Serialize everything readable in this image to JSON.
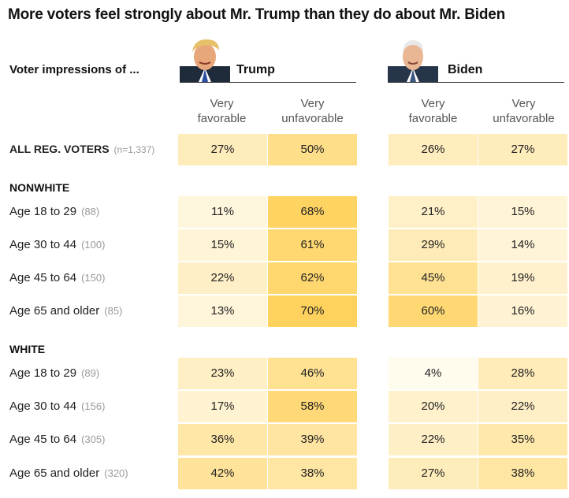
{
  "title": "More voters feel strongly about Mr. Trump than they do about Mr. Biden",
  "subhead": "Voter impressions of ...",
  "candidates": [
    {
      "name": "Trump",
      "icon": "trump-portrait-icon"
    },
    {
      "name": "Biden",
      "icon": "biden-portrait-icon"
    }
  ],
  "columns": [
    {
      "line1": "Very",
      "line2": "favorable"
    },
    {
      "line1": "Very",
      "line2": "unfavorable"
    },
    {
      "line1": "Very",
      "line2": "favorable"
    },
    {
      "line1": "Very",
      "line2": "unfavorable"
    }
  ],
  "colors": {
    "scale_low": "#fffdf6",
    "scale_high": "#ffd25e",
    "rule": "#333333"
  },
  "chart_data": {
    "type": "table",
    "groups": [
      "NONWHITE",
      "WHITE"
    ],
    "rows": [
      {
        "label": "ALL REG. VOTERS",
        "n": "(n=1,337)",
        "group": null,
        "values": [
          27,
          50,
          26,
          27
        ],
        "display": [
          "27%",
          "50%",
          "26%",
          "27%"
        ]
      },
      {
        "label": "Age 18 to 29",
        "n": "(88)",
        "group": "NONWHITE",
        "values": [
          11,
          68,
          21,
          15
        ],
        "display": [
          "11%",
          "68%",
          "21%",
          "15%"
        ]
      },
      {
        "label": "Age 30 to 44",
        "n": "(100)",
        "group": "NONWHITE",
        "values": [
          15,
          61,
          29,
          14
        ],
        "display": [
          "15%",
          "61%",
          "29%",
          "14%"
        ]
      },
      {
        "label": "Age 45 to 64",
        "n": "(150)",
        "group": "NONWHITE",
        "values": [
          22,
          62,
          45,
          19
        ],
        "display": [
          "22%",
          "62%",
          "45%",
          "19%"
        ]
      },
      {
        "label": "Age 65 and older",
        "n": "(85)",
        "group": "NONWHITE",
        "values": [
          13,
          70,
          60,
          16
        ],
        "display": [
          "13%",
          "70%",
          "60%",
          "16%"
        ]
      },
      {
        "label": "Age 18 to 29",
        "n": "(89)",
        "group": "WHITE",
        "values": [
          23,
          46,
          4,
          28
        ],
        "display": [
          "23%",
          "46%",
          "4%",
          "28%"
        ]
      },
      {
        "label": "Age 30 to 44",
        "n": "(156)",
        "group": "WHITE",
        "values": [
          17,
          58,
          20,
          22
        ],
        "display": [
          "17%",
          "58%",
          "20%",
          "22%"
        ]
      },
      {
        "label": "Age 45 to 64",
        "n": "(305)",
        "group": "WHITE",
        "values": [
          36,
          39,
          22,
          35
        ],
        "display": [
          "36%",
          "39%",
          "22%",
          "35%"
        ]
      },
      {
        "label": "Age 65 and older",
        "n": "(320)",
        "group": "WHITE",
        "values": [
          42,
          38,
          27,
          38
        ],
        "display": [
          "42%",
          "38%",
          "27%",
          "38%"
        ]
      }
    ]
  }
}
